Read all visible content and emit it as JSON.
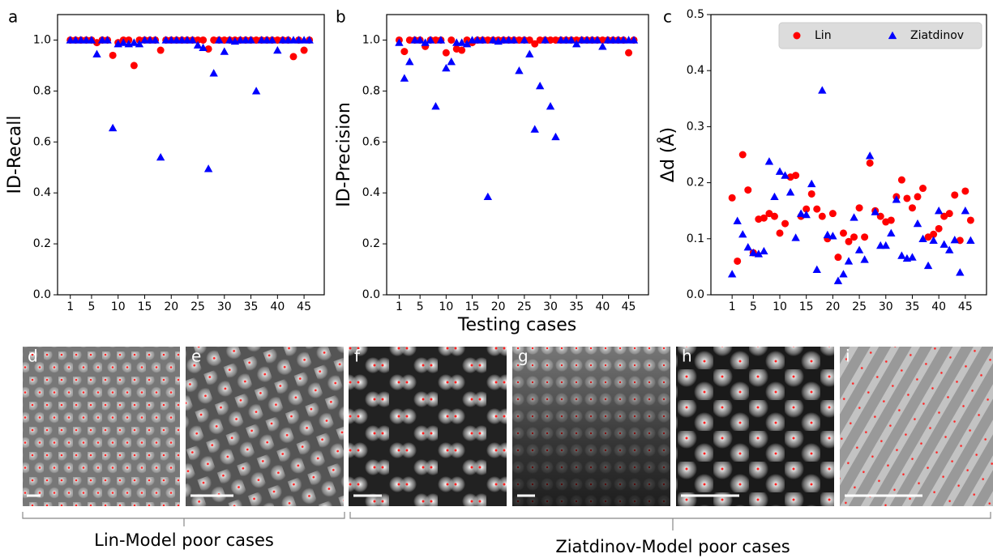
{
  "chart_data": [
    {
      "type": "scatter",
      "panel": "a",
      "ylabel": "ID-Recall",
      "x": [
        1,
        2,
        3,
        4,
        5,
        6,
        7,
        8,
        9,
        10,
        11,
        12,
        13,
        14,
        15,
        16,
        17,
        18,
        19,
        20,
        21,
        22,
        23,
        24,
        25,
        26,
        27,
        28,
        29,
        30,
        31,
        32,
        33,
        34,
        35,
        36,
        37,
        38,
        39,
        40,
        41,
        42,
        43,
        44,
        45,
        46
      ],
      "series": [
        {
          "name": "Lin",
          "color": "#ff0000",
          "marker": "circle",
          "values": [
            1,
            1,
            1,
            1,
            1,
            0.99,
            1,
            1,
            0.94,
            0.99,
            1,
            1,
            0.9,
            1,
            1,
            1,
            1,
            0.96,
            1,
            1,
            1,
            1,
            1,
            1,
            1,
            1,
            0.965,
            1,
            1,
            1,
            1,
            1,
            1,
            1,
            1,
            1,
            1,
            1,
            1,
            1,
            1,
            1,
            0.935,
            1,
            0.96,
            1
          ]
        },
        {
          "name": "Ziatdinov",
          "color": "#0000ff",
          "marker": "triangle",
          "values": [
            1,
            1,
            1,
            1,
            1,
            0.945,
            1,
            1,
            0.655,
            0.985,
            0.99,
            0.985,
            0.99,
            0.985,
            1,
            1,
            1,
            0.54,
            1,
            1,
            1,
            1,
            1,
            1,
            0.98,
            0.97,
            0.495,
            0.87,
            1,
            0.955,
            1,
            0.995,
            1,
            1,
            1,
            0.8,
            1,
            1,
            1,
            0.96,
            1,
            1,
            1,
            1,
            1,
            1
          ]
        }
      ],
      "xlim": [
        -1.4,
        48.8
      ],
      "xticks": [
        1,
        5,
        10,
        15,
        20,
        25,
        30,
        35,
        40,
        45
      ],
      "ylim": [
        0,
        1.1
      ],
      "yticks": [
        {
          "value": 0,
          "label": "0.0"
        },
        0.2,
        0.4,
        0.6,
        0.8,
        {
          "value": 1,
          "label": "1.0"
        }
      ],
      "grid": false
    },
    {
      "type": "scatter",
      "panel": "b",
      "ylabel": "ID-Precision",
      "x": [
        1,
        2,
        3,
        4,
        5,
        6,
        7,
        8,
        9,
        10,
        11,
        12,
        13,
        14,
        15,
        16,
        17,
        18,
        19,
        20,
        21,
        22,
        23,
        24,
        25,
        26,
        27,
        28,
        29,
        30,
        31,
        32,
        33,
        34,
        35,
        36,
        37,
        38,
        39,
        40,
        41,
        42,
        43,
        44,
        45,
        46
      ],
      "series": [
        {
          "name": "Lin",
          "color": "#ff0000",
          "marker": "circle",
          "values": [
            1,
            0.955,
            1,
            1,
            1,
            0.975,
            1,
            1,
            1,
            0.95,
            1,
            0.965,
            0.96,
            1,
            0.99,
            1,
            1,
            1,
            1,
            1,
            1,
            1,
            1,
            1,
            1,
            1,
            0.985,
            1,
            1,
            1,
            1,
            1,
            1,
            1,
            1,
            1,
            1,
            1,
            1,
            1,
            1,
            1,
            1,
            1,
            0.95,
            1
          ]
        },
        {
          "name": "Ziatdinov",
          "color": "#0000ff",
          "marker": "triangle",
          "values": [
            0.99,
            0.85,
            0.915,
            1,
            1,
            0.99,
            1,
            0.74,
            1,
            0.89,
            0.915,
            0.99,
            0.99,
            0.985,
            1,
            1,
            1,
            0.385,
            1,
            0.995,
            1,
            1,
            1,
            0.88,
            1,
            0.945,
            0.65,
            0.82,
            1,
            0.74,
            0.62,
            1,
            1,
            1,
            0.985,
            1,
            1,
            1,
            1,
            0.975,
            1,
            1,
            1,
            1,
            1,
            1
          ]
        }
      ],
      "xlim": [
        -1.4,
        48.8
      ],
      "xticks": [
        1,
        5,
        10,
        15,
        20,
        25,
        30,
        35,
        40,
        45
      ],
      "ylim": [
        0,
        1.1
      ],
      "yticks": [
        {
          "value": 0,
          "label": "0.0"
        },
        0.2,
        0.4,
        0.6,
        0.8,
        {
          "value": 1,
          "label": "1.0"
        }
      ],
      "grid": false
    },
    {
      "type": "scatter",
      "panel": "c",
      "ylabel": "Δd (Å)",
      "legend": "upper right",
      "x": [
        1,
        2,
        3,
        4,
        5,
        6,
        7,
        8,
        9,
        10,
        11,
        12,
        13,
        14,
        15,
        16,
        17,
        18,
        19,
        20,
        21,
        22,
        23,
        24,
        25,
        26,
        27,
        28,
        29,
        30,
        31,
        32,
        33,
        34,
        35,
        36,
        37,
        38,
        39,
        40,
        41,
        42,
        43,
        44,
        45,
        46
      ],
      "series": [
        {
          "name": "Lin",
          "color": "#ff0000",
          "marker": "circle",
          "values": [
            0.173,
            0.06,
            0.25,
            0.187,
            0.075,
            0.135,
            0.137,
            0.145,
            0.14,
            0.11,
            0.127,
            0.21,
            0.213,
            0.14,
            0.153,
            0.18,
            0.153,
            0.14,
            0.1,
            0.145,
            0.067,
            0.11,
            0.095,
            0.103,
            0.155,
            0.103,
            0.235,
            0.15,
            0.14,
            0.13,
            0.133,
            0.175,
            0.205,
            0.172,
            0.155,
            0.175,
            0.19,
            0.103,
            0.108,
            0.118,
            0.14,
            0.145,
            0.178,
            0.097,
            0.185,
            0.133
          ]
        },
        {
          "name": "Ziatdinov",
          "color": "#0000ff",
          "marker": "triangle",
          "values": [
            0.037,
            0.132,
            0.108,
            0.085,
            0.075,
            0.073,
            0.078,
            0.238,
            0.175,
            0.22,
            0.213,
            0.183,
            0.102,
            0.145,
            0.143,
            0.198,
            0.045,
            0.365,
            0.107,
            0.105,
            0.025,
            0.037,
            0.06,
            0.138,
            0.08,
            0.063,
            0.248,
            0.148,
            0.088,
            0.088,
            0.11,
            0.17,
            0.07,
            0.065,
            0.067,
            0.127,
            0.1,
            0.052,
            0.097,
            0.15,
            0.09,
            0.08,
            0.098,
            0.04,
            0.15,
            0.097
          ]
        }
      ],
      "xlim": [
        -3,
        49
      ],
      "xticks": [
        1,
        5,
        10,
        15,
        20,
        25,
        30,
        35,
        40,
        45
      ],
      "ylim": [
        0,
        0.5
      ],
      "yticks": [
        {
          "value": 0,
          "label": "0.0"
        },
        0.1,
        0.2,
        0.3,
        0.4,
        0.5
      ],
      "grid": false
    }
  ],
  "shared_xlabel": "Testing cases",
  "image_panels": [
    "d",
    "e",
    "f",
    "g",
    "h",
    "i"
  ],
  "groups": [
    "Lin-Model poor cases",
    "Ziatdinov-Model poor cases"
  ]
}
